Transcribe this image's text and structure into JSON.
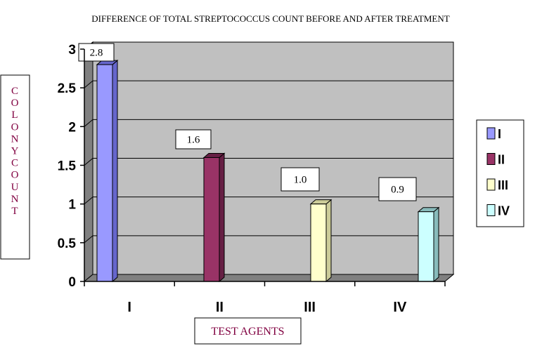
{
  "chart_data": {
    "type": "bar",
    "title": "DIFFERENCE OF TOTAL STREPTOCOCCUS COUNT BEFORE AND AFTER TREATMENT",
    "xlabel": "TEST AGENTS",
    "ylabel": "COLONYCOUNT",
    "categories": [
      "I",
      "II",
      "III",
      "IV"
    ],
    "values": [
      2.8,
      1.6,
      1.0,
      0.9
    ],
    "data_labels": [
      "2.8",
      "1.6",
      "1.0",
      "0.9"
    ],
    "ylim": [
      0,
      3
    ],
    "yticks": [
      "0",
      "0.5",
      "1",
      "1.5",
      "2",
      "2.5",
      "3"
    ],
    "grid": true,
    "legend_position": "right",
    "legend": [
      {
        "label": "I",
        "color": "#9999ff"
      },
      {
        "label": "II",
        "color": "#993366"
      },
      {
        "label": "III",
        "color": "#ffffcc"
      },
      {
        "label": "IV",
        "color": "#ccffff"
      }
    ],
    "colors": {
      "plot_background": "#c0c0c0",
      "side_wall": "#808080",
      "floor": "#808080",
      "gridline": "#000000",
      "bar_fronts": [
        "#9999ff",
        "#993366",
        "#ffffcc",
        "#ccffff"
      ],
      "bar_sides": [
        "#6666cc",
        "#661f44",
        "#cccc99",
        "#88bbbb"
      ],
      "label_color": "#800040"
    }
  }
}
